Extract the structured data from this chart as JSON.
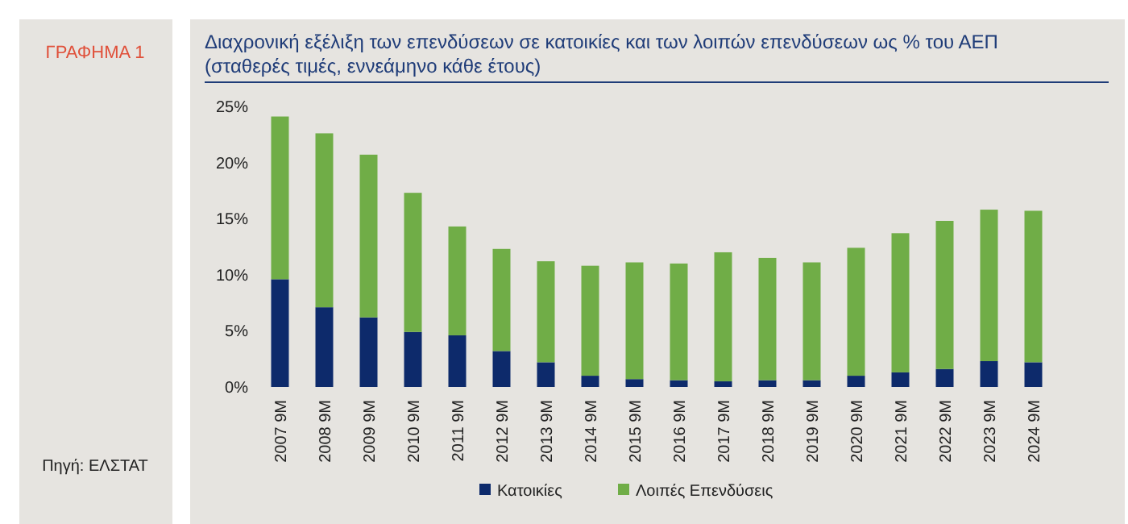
{
  "chart_data": {
    "type": "bar",
    "title": "Διαχρονική εξέλιξη των επενδύσεων σε κατοικίες και των λοιπών επενδύσεων ως % του ΑΕΠ (σταθερές τιμές, εννεάμηνο κάθε έτους)",
    "annotations": [
      "ΓΡΑΦΗΜΑ 1",
      "Πηγή: ΕΛΣΤΑΤ"
    ],
    "categories": [
      "2007 9M",
      "2008 9M",
      "2009 9M",
      "2010 9M",
      "2011 9M",
      "2012 9M",
      "2013 9M",
      "2014 9M",
      "2015 9M",
      "2016 9M",
      "2017 9M",
      "2018 9M",
      "2019 9M",
      "2020 9M",
      "2021 9M",
      "2022 9M",
      "2023 9M",
      "2024 9M"
    ],
    "stacked": true,
    "series": [
      {
        "name": "Κατοικίες",
        "color": "#0d2a6b",
        "values": [
          9.6,
          7.1,
          6.2,
          4.9,
          4.6,
          3.2,
          2.2,
          1.0,
          0.7,
          0.6,
          0.5,
          0.6,
          0.6,
          1.0,
          1.3,
          1.6,
          2.3,
          2.2
        ]
      },
      {
        "name": "Λοιπές Επενδύσεις",
        "color": "#70ad47",
        "values": [
          14.5,
          15.5,
          14.5,
          12.4,
          9.7,
          9.1,
          9.0,
          9.8,
          10.4,
          10.4,
          11.5,
          10.9,
          10.5,
          11.4,
          12.4,
          13.2,
          13.5,
          13.5
        ]
      }
    ],
    "ylim": [
      0,
      25
    ],
    "yticks": [
      {
        "value": 0,
        "label": "0%"
      },
      {
        "value": 5,
        "label": "5%"
      },
      {
        "value": 10,
        "label": "10%"
      },
      {
        "value": 15,
        "label": "15%"
      },
      {
        "value": 20,
        "label": "20%"
      },
      {
        "value": 25,
        "label": "25%"
      }
    ],
    "legend": "bottom"
  }
}
